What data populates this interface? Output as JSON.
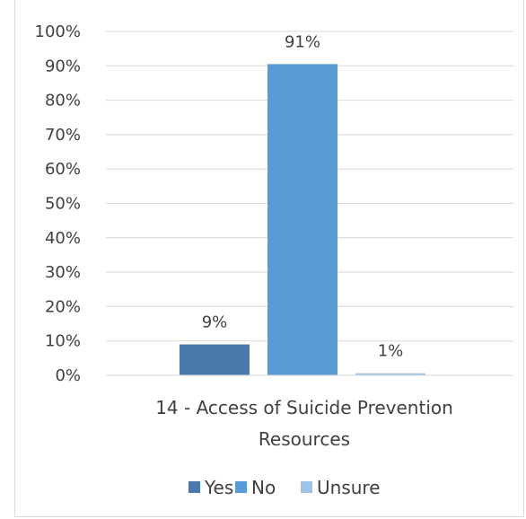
{
  "chart_data": {
    "type": "bar",
    "categories": [
      "14 - Access of Suicide Prevention Resources"
    ],
    "category_lines": [
      "14 - Access of Suicide Prevention",
      "Resources"
    ],
    "ylim": [
      0,
      1
    ],
    "y_ticks": [
      "0%",
      "10%",
      "20%",
      "30%",
      "40%",
      "50%",
      "60%",
      "70%",
      "80%",
      "90%",
      "100%"
    ],
    "grid": true,
    "legend_position": "bottom",
    "series": [
      {
        "name": "Yes",
        "value": 0.09,
        "label": "9%",
        "color": "#4a7aab"
      },
      {
        "name": "No",
        "value": 0.905,
        "label": "91%",
        "color": "#5b9bd5"
      },
      {
        "name": "Unsure",
        "value": 0.006,
        "label": "1%",
        "color": "#9dc3e6"
      }
    ]
  }
}
